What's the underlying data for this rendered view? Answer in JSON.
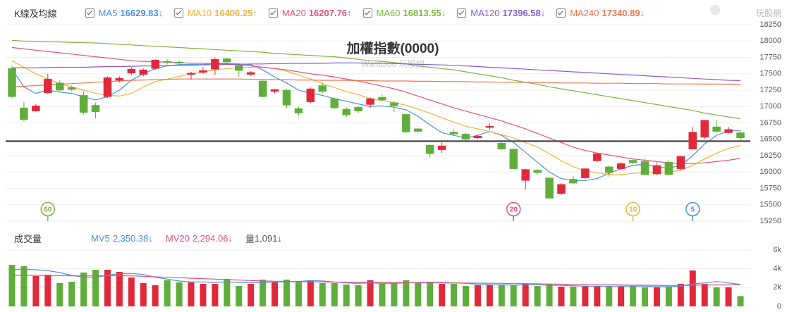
{
  "chart_data": [
    {
      "type": "candlestick",
      "header": "K線及均線",
      "title": "加權指數(0000)",
      "subtitle": "WantGoo 玩股網",
      "logo": "玩股網",
      "up_color": "#e0293a",
      "down_color": "#5fae3c",
      "open": [
        17580,
        16980,
        16930,
        17210,
        17360,
        17290,
        17170,
        17020,
        17150,
        17400,
        17510,
        17490,
        17580,
        17690,
        17680,
        17490,
        17520,
        17570,
        17730,
        17630,
        17490,
        17390,
        17230,
        17250,
        16970,
        17070,
        17320,
        17120,
        16960,
        16990,
        17030,
        17140,
        17060,
        16880,
        16660,
        16410,
        16340,
        16610,
        16580,
        16520,
        16680,
        16440,
        16350,
        15870,
        16030,
        15910,
        15670,
        15890,
        15910,
        16170,
        16080,
        16050,
        16180,
        16160,
        15970,
        16150,
        16050,
        16350,
        16530,
        16690,
        16600,
        16600
      ],
      "high": [
        17620,
        17070,
        17040,
        17500,
        17400,
        17320,
        17230,
        17060,
        17460,
        17460,
        17600,
        17580,
        17720,
        17720,
        17700,
        17530,
        17600,
        17750,
        17740,
        17660,
        17540,
        17400,
        17270,
        17270,
        17000,
        17290,
        17360,
        17140,
        16990,
        17010,
        17140,
        17180,
        17080,
        16890,
        16670,
        16420,
        16450,
        16650,
        16600,
        16570,
        16740,
        16460,
        16360,
        16050,
        16050,
        15920,
        15830,
        15940,
        16060,
        16290,
        16100,
        16150,
        16200,
        16210,
        16150,
        16180,
        16250,
        16690,
        16800,
        16790,
        16690,
        16630
      ],
      "low": [
        17130,
        16770,
        16920,
        17190,
        17230,
        17230,
        16880,
        16820,
        17130,
        17370,
        17480,
        17460,
        17560,
        17640,
        17620,
        17410,
        17500,
        17480,
        17660,
        17450,
        17470,
        17140,
        17200,
        16980,
        16860,
        17050,
        17200,
        16960,
        16840,
        16900,
        16980,
        17080,
        16920,
        16600,
        16600,
        16220,
        16290,
        16560,
        16480,
        16500,
        16640,
        16340,
        16040,
        15730,
        15960,
        15590,
        15650,
        15810,
        15890,
        16150,
        15930,
        16030,
        16120,
        15950,
        15950,
        15950,
        16020,
        16340,
        16500,
        16600,
        16580,
        16480
      ],
      "close": [
        17150,
        16800,
        17010,
        17420,
        17250,
        17260,
        16910,
        16920,
        17440,
        17430,
        17570,
        17560,
        17710,
        17670,
        17660,
        17510,
        17550,
        17720,
        17680,
        17550,
        17520,
        17150,
        17260,
        17020,
        16900,
        17270,
        17230,
        16980,
        16870,
        16930,
        17120,
        17100,
        17010,
        16610,
        16620,
        16280,
        16400,
        16580,
        16500,
        16550,
        16700,
        16350,
        16050,
        16040,
        15990,
        15600,
        15810,
        15830,
        16050,
        16280,
        15990,
        16130,
        16140,
        15960,
        16100,
        15960,
        16240,
        16610,
        16790,
        16620,
        16650,
        16520
      ],
      "series": [
        {
          "name": "MA5",
          "color": "#4a8fe0",
          "latest": 16629.83,
          "arrow": "↓",
          "values": [
            17570,
            17300,
            17200,
            17250,
            17220,
            17200,
            17150,
            17100,
            17150,
            17250,
            17400,
            17500,
            17580,
            17620,
            17640,
            17640,
            17640,
            17660,
            17660,
            17650,
            17640,
            17560,
            17450,
            17360,
            17250,
            17200,
            17170,
            17120,
            17080,
            17040,
            17000,
            17010,
            16990,
            16950,
            16850,
            16720,
            16600,
            16560,
            16520,
            16560,
            16620,
            16560,
            16450,
            16300,
            16150,
            16000,
            15900,
            15870,
            15870,
            15900,
            15980,
            16050,
            16100,
            16120,
            16080,
            16060,
            16100,
            16250,
            16430,
            16560,
            16630,
            16629.83
          ]
        },
        {
          "name": "MA10",
          "color": "#f3b23c",
          "latest": 16406.25,
          "arrow": "↑",
          "values": [
            17700,
            17600,
            17500,
            17420,
            17350,
            17300,
            17250,
            17200,
            17170,
            17160,
            17200,
            17300,
            17380,
            17420,
            17460,
            17500,
            17530,
            17560,
            17580,
            17590,
            17600,
            17600,
            17580,
            17540,
            17480,
            17420,
            17350,
            17290,
            17230,
            17180,
            17120,
            17090,
            17060,
            17020,
            16960,
            16900,
            16830,
            16760,
            16700,
            16660,
            16620,
            16570,
            16520,
            16450,
            16380,
            16280,
            16170,
            16080,
            16020,
            15990,
            15960,
            15960,
            15980,
            15990,
            16000,
            16000,
            16030,
            16100,
            16200,
            16290,
            16360,
            16406.25
          ]
        },
        {
          "name": "MA20",
          "color": "#e4517e",
          "latest": 16207.76,
          "arrow": "↑",
          "values": [
            17900,
            17880,
            17860,
            17840,
            17820,
            17800,
            17780,
            17760,
            17740,
            17720,
            17700,
            17690,
            17680,
            17680,
            17670,
            17660,
            17660,
            17650,
            17650,
            17640,
            17620,
            17600,
            17580,
            17560,
            17530,
            17500,
            17480,
            17450,
            17420,
            17390,
            17350,
            17310,
            17270,
            17220,
            17160,
            17100,
            17040,
            16980,
            16930,
            16880,
            16830,
            16780,
            16720,
            16660,
            16590,
            16520,
            16450,
            16380,
            16330,
            16290,
            16260,
            16230,
            16200,
            16180,
            16160,
            16140,
            16130,
            16130,
            16140,
            16160,
            16180,
            16207.76
          ]
        },
        {
          "name": "MA60",
          "color": "#7cb342",
          "latest": 16813.55,
          "arrow": "↓",
          "values": [
            18010,
            18000,
            17995,
            17990,
            17985,
            17980,
            17975,
            17970,
            17960,
            17950,
            17940,
            17930,
            17920,
            17910,
            17900,
            17890,
            17880,
            17870,
            17860,
            17850,
            17840,
            17830,
            17810,
            17800,
            17790,
            17780,
            17770,
            17760,
            17740,
            17720,
            17700,
            17690,
            17670,
            17650,
            17620,
            17600,
            17580,
            17560,
            17530,
            17500,
            17470,
            17440,
            17400,
            17370,
            17340,
            17300,
            17270,
            17240,
            17210,
            17180,
            17150,
            17120,
            17090,
            17060,
            17030,
            17000,
            16970,
            16940,
            16900,
            16870,
            16840,
            16813.55
          ]
        },
        {
          "name": "MA120",
          "color": "#8a5ad6",
          "latest": 17396.58,
          "arrow": "↓",
          "values": [
            17590,
            17590,
            17590,
            17595,
            17600,
            17600,
            17600,
            17605,
            17610,
            17610,
            17615,
            17620,
            17620,
            17625,
            17630,
            17630,
            17635,
            17640,
            17640,
            17645,
            17650,
            17650,
            17655,
            17655,
            17660,
            17660,
            17660,
            17665,
            17665,
            17665,
            17660,
            17660,
            17655,
            17650,
            17645,
            17640,
            17635,
            17630,
            17620,
            17610,
            17600,
            17590,
            17580,
            17570,
            17560,
            17550,
            17540,
            17530,
            17520,
            17510,
            17500,
            17490,
            17480,
            17470,
            17460,
            17450,
            17440,
            17430,
            17420,
            17410,
            17400,
            17396.58
          ]
        },
        {
          "name": "MA240",
          "color": "#f0724c",
          "latest": 17340.89,
          "arrow": "↓",
          "values": [
            17300,
            17310,
            17320,
            17330,
            17340,
            17350,
            17360,
            17370,
            17380,
            17390,
            17400,
            17405,
            17410,
            17415,
            17420,
            17420,
            17420,
            17420,
            17420,
            17420,
            17415,
            17415,
            17410,
            17410,
            17405,
            17405,
            17400,
            17400,
            17400,
            17395,
            17395,
            17390,
            17390,
            17390,
            17385,
            17385,
            17380,
            17380,
            17380,
            17375,
            17375,
            17370,
            17370,
            17370,
            17365,
            17365,
            17360,
            17360,
            17360,
            17355,
            17355,
            17355,
            17350,
            17350,
            17350,
            17345,
            17345,
            17345,
            17343,
            17342,
            17341,
            17340.89
          ]
        }
      ],
      "reference_line": 16470,
      "markers": [
        {
          "label": "60",
          "index": 3,
          "color": "#7cb342"
        },
        {
          "label": "20",
          "index": 42,
          "color": "#e4517e"
        },
        {
          "label": "10",
          "index": 52,
          "color": "#f3b23c"
        },
        {
          "label": "5",
          "index": 57,
          "color": "#4a8fe0"
        }
      ],
      "ylim": [
        15250,
        18250
      ],
      "yticks": [
        15250,
        15500,
        15750,
        16000,
        16250,
        16500,
        16750,
        17000,
        17250,
        17500,
        17750,
        18000,
        18250
      ],
      "grid": true
    },
    {
      "type": "bar",
      "title": "成交量",
      "values": [
        4425,
        4275,
        3225,
        3375,
        2475,
        2625,
        3600,
        3900,
        3900,
        3675,
        3075,
        2475,
        2250,
        2775,
        2550,
        2550,
        2400,
        2400,
        2925,
        2175,
        2400,
        2850,
        2550,
        2850,
        2700,
        2775,
        2475,
        2475,
        2325,
        2250,
        2775,
        2400,
        2475,
        2775,
        2550,
        2625,
        2400,
        2400,
        2175,
        2250,
        2325,
        2250,
        2250,
        2400,
        2175,
        2400,
        2100,
        2100,
        2175,
        2175,
        2175,
        2100,
        2175,
        2025,
        2025,
        2100,
        2400,
        3825,
        2400,
        2025,
        2025,
        1091
      ],
      "volume_name": "量",
      "latest": {
        "value": 1091,
        "label": "1,091"
      },
      "arrow": "↓",
      "series": [
        {
          "name": "MV5",
          "color": "#4a8fe0",
          "latest": {
            "value": 2350.38,
            "label": "2,350.38"
          },
          "arrow": "↓",
          "values": [
            3900,
            3950,
            3900,
            3800,
            3600,
            3300,
            3100,
            3100,
            3300,
            3500,
            3500,
            3400,
            3100,
            2900,
            2700,
            2600,
            2600,
            2550,
            2600,
            2550,
            2500,
            2550,
            2600,
            2600,
            2650,
            2750,
            2700,
            2600,
            2500,
            2450,
            2500,
            2450,
            2450,
            2500,
            2550,
            2550,
            2550,
            2500,
            2450,
            2350,
            2300,
            2300,
            2250,
            2300,
            2300,
            2250,
            2250,
            2200,
            2150,
            2150,
            2150,
            2150,
            2150,
            2150,
            2100,
            2100,
            2150,
            2400,
            2500,
            2650,
            2500,
            2350.38
          ]
        },
        {
          "name": "MV20",
          "color": "#e4517e",
          "latest": {
            "value": 2294.06,
            "label": "2,294.06"
          },
          "arrow": "↓",
          "values": [
            3300,
            3300,
            3300,
            3300,
            3280,
            3250,
            3250,
            3250,
            3260,
            3270,
            3250,
            3200,
            3150,
            3100,
            3050,
            3000,
            2950,
            2900,
            2850,
            2800,
            2750,
            2700,
            2680,
            2660,
            2640,
            2620,
            2600,
            2580,
            2570,
            2560,
            2550,
            2550,
            2540,
            2530,
            2520,
            2510,
            2500,
            2490,
            2480,
            2470,
            2460,
            2450,
            2440,
            2420,
            2400,
            2380,
            2360,
            2340,
            2320,
            2310,
            2300,
            2280,
            2260,
            2250,
            2240,
            2230,
            2230,
            2250,
            2270,
            2280,
            2290,
            2294.06
          ]
        }
      ],
      "ylim": [
        0,
        6000
      ],
      "yticks": [
        0,
        {
          "value": 2000,
          "label": "2k"
        },
        {
          "value": 4000,
          "label": "4k"
        },
        {
          "value": 6000,
          "label": "6k"
        }
      ],
      "grid": true
    }
  ]
}
